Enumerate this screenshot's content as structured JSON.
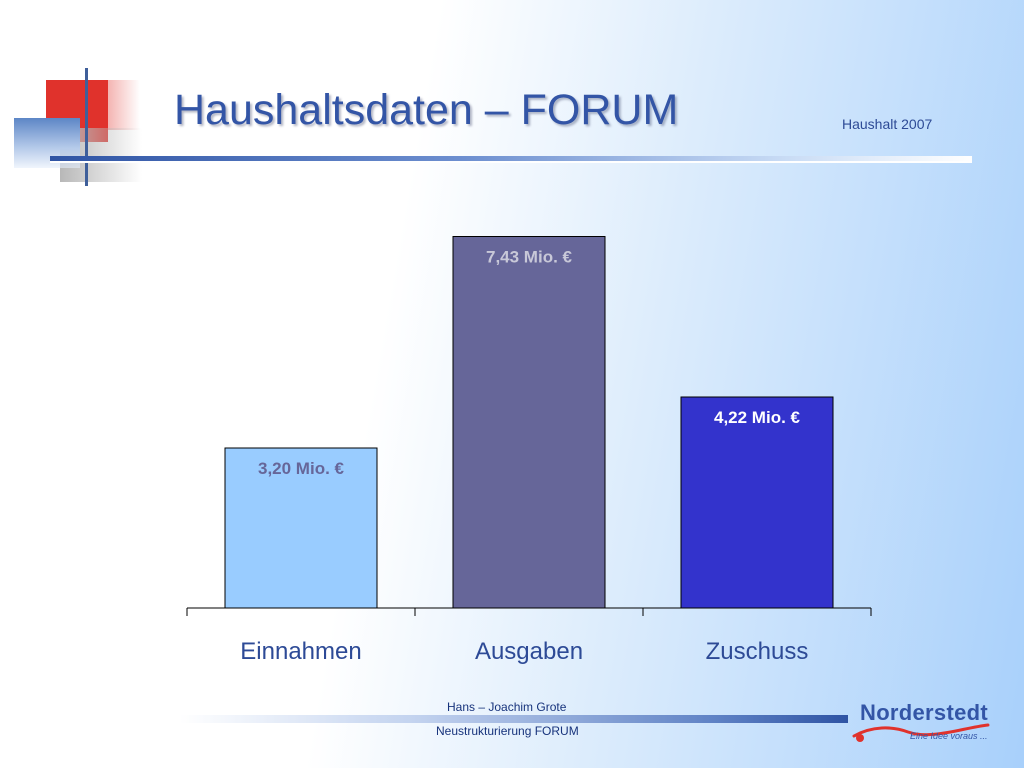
{
  "header": {
    "title": "Haushaltsdaten – FORUM",
    "subtitle": "Haushalt 2007"
  },
  "chart_data": {
    "type": "bar",
    "title": "",
    "xlabel": "",
    "ylabel": "",
    "categories": [
      "Einnahmen",
      "Ausgaben",
      "Zuschuss"
    ],
    "values": [
      3.2,
      7.43,
      4.22
    ],
    "value_labels": [
      "3,20 Mio. €",
      "7,43 Mio. €",
      "4,22 Mio. €"
    ],
    "unit": "Mio. €",
    "ylim": [
      0,
      8
    ],
    "grid": false,
    "legend": "none",
    "bar_colors": [
      "#99ccff",
      "#666699",
      "#3333cc"
    ],
    "label_colors": [
      "#666699",
      "#c8c8d8",
      "#ffffff"
    ]
  },
  "footer": {
    "author": "Hans – Joachim Grote",
    "project": "Neustrukturierung FORUM"
  },
  "logo": {
    "name": "Norderstedt",
    "slogan": "Eine Idee voraus ..."
  },
  "colors": {
    "title": "#3355a6",
    "accent_red": "#e0322c",
    "axis_label": "#2d4a96"
  }
}
